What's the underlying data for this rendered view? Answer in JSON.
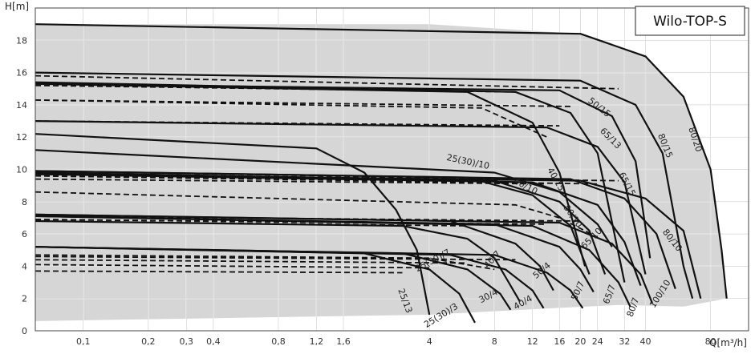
{
  "chart_data": {
    "type": "line",
    "title": "Wilo-TOP-S",
    "xlabel": "Q[m³/h]",
    "ylabel": "H[m]",
    "x_scale": "log",
    "xlim": [
      0.06,
      120
    ],
    "ylim": [
      0,
      20
    ],
    "grid": true,
    "x_ticks": [
      {
        "value": 0.1,
        "label": "0,1"
      },
      {
        "value": 0.2,
        "label": "0,2"
      },
      {
        "value": 0.3,
        "label": "0,3"
      },
      {
        "value": 0.4,
        "label": "0,4"
      },
      {
        "value": 0.8,
        "label": "0,8"
      },
      {
        "value": 1.2,
        "label": "1,2"
      },
      {
        "value": 1.6,
        "label": "1,6"
      },
      {
        "value": 4,
        "label": "4"
      },
      {
        "value": 8,
        "label": "8"
      },
      {
        "value": 12,
        "label": "12"
      },
      {
        "value": 16,
        "label": "16"
      },
      {
        "value": 20,
        "label": "20"
      },
      {
        "value": 24,
        "label": "24"
      },
      {
        "value": 32,
        "label": "32"
      },
      {
        "value": 40,
        "label": "40"
      },
      {
        "value": 80,
        "label": "80"
      }
    ],
    "y_ticks": [
      0,
      2,
      4,
      6,
      8,
      10,
      12,
      14,
      16,
      18
    ],
    "envelope": {
      "top": [
        [
          0.06,
          19.0
        ],
        [
          4,
          19.0
        ],
        [
          20,
          18.4
        ],
        [
          40,
          17.0
        ],
        [
          60,
          14.5
        ],
        [
          80,
          10.0
        ],
        [
          90,
          5.0
        ],
        [
          95,
          2.0
        ]
      ],
      "bottom": [
        [
          95,
          2.0
        ],
        [
          60,
          1.5
        ],
        [
          30,
          1.6
        ],
        [
          15,
          1.4
        ],
        [
          4,
          1.0
        ],
        [
          0.06,
          0.6
        ]
      ]
    },
    "series": [
      {
        "name": "25(30)/10",
        "max": [
          [
            0.06,
            11.2
          ],
          [
            8,
            9.8
          ],
          [
            16,
            8.6
          ],
          [
            24,
            6.6
          ],
          [
            28,
            5.2
          ]
        ],
        "min": [
          [
            0.06,
            8.6
          ],
          [
            10,
            7.8
          ],
          [
            16,
            7.0
          ],
          [
            24,
            5.8
          ]
        ]
      },
      {
        "name": "25/13",
        "max": [
          [
            0.06,
            12.2
          ],
          [
            1.2,
            11.3
          ],
          [
            2,
            9.8
          ],
          [
            2.8,
            7.5
          ],
          [
            3.5,
            5.0
          ],
          [
            4,
            1.0
          ]
        ],
        "min": []
      },
      {
        "name": "25(30)/7",
        "max": [
          [
            0.06,
            6.8
          ],
          [
            3,
            6.5
          ],
          [
            6,
            5.7
          ],
          [
            8,
            4.5
          ],
          [
            10.5,
            1.8
          ]
        ],
        "min": [
          [
            0.06,
            4.7
          ],
          [
            4,
            4.5
          ],
          [
            8,
            3.8
          ]
        ]
      },
      {
        "name": "25(30)/4",
        "max": [
          [
            0.06,
            5.2
          ],
          [
            2,
            4.8
          ],
          [
            4,
            3.8
          ],
          [
            5.5,
            2.3
          ],
          [
            6.5,
            0.5
          ]
        ],
        "min": [
          [
            0.06,
            3.7
          ],
          [
            3,
            3.6
          ]
        ]
      },
      {
        "name": "30/4",
        "max": [
          [
            0.06,
            5.2
          ],
          [
            3,
            4.8
          ],
          [
            6,
            3.8
          ],
          [
            8.5,
            2.3
          ],
          [
            9.5,
            1.3
          ]
        ],
        "min": [
          [
            0.06,
            4.1
          ],
          [
            4,
            3.9
          ]
        ]
      },
      {
        "name": "40/4",
        "max": [
          [
            0.06,
            5.2
          ],
          [
            5,
            4.7
          ],
          [
            9,
            3.8
          ],
          [
            12,
            2.5
          ],
          [
            13.5,
            1.4
          ]
        ],
        "min": [
          [
            0.06,
            4.4
          ],
          [
            6,
            4.2
          ]
        ]
      },
      {
        "name": "40/7",
        "max": [
          [
            0.06,
            7.2
          ],
          [
            5,
            6.8
          ],
          [
            10,
            5.4
          ],
          [
            13,
            4.0
          ],
          [
            15,
            2.5
          ]
        ],
        "min": [
          [
            0.06,
            6.8
          ],
          [
            6,
            6.5
          ]
        ]
      },
      {
        "name": "40/10",
        "max": [
          [
            0.06,
            9.9
          ],
          [
            6,
            9.5
          ],
          [
            12,
            8.4
          ],
          [
            18,
            6.5
          ],
          [
            22,
            3.5
          ]
        ],
        "min": [
          [
            0.06,
            9.6
          ],
          [
            7,
            9.2
          ]
        ]
      },
      {
        "name": "40/15",
        "max": [
          [
            0.06,
            15.3
          ],
          [
            6,
            14.8
          ],
          [
            12,
            12.9
          ],
          [
            16,
            9.8
          ],
          [
            21,
            4.0
          ]
        ],
        "min": [
          [
            0.06,
            14.3
          ],
          [
            7,
            13.8
          ],
          [
            14,
            12.0
          ]
        ]
      },
      {
        "name": "50/4",
        "max": [
          [
            0.06,
            5.2
          ],
          [
            8,
            4.7
          ],
          [
            14,
            3.6
          ],
          [
            18,
            2.5
          ],
          [
            20.5,
            1.4
          ]
        ],
        "min": [
          [
            0.06,
            4.6
          ],
          [
            10,
            4.4
          ]
        ]
      },
      {
        "name": "50/7",
        "max": [
          [
            0.06,
            7.1
          ],
          [
            8,
            6.6
          ],
          [
            16,
            5.2
          ],
          [
            20,
            3.8
          ],
          [
            23,
            2.4
          ]
        ],
        "min": [
          [
            0.06,
            6.9
          ],
          [
            10,
            6.6
          ]
        ]
      },
      {
        "name": "50/10",
        "max": [
          [
            0.06,
            9.8
          ],
          [
            8,
            9.3
          ],
          [
            16,
            8.0
          ],
          [
            22,
            6.2
          ],
          [
            26,
            3.5
          ]
        ],
        "min": [
          [
            0.06,
            9.9
          ],
          [
            10,
            9.4
          ]
        ]
      },
      {
        "name": "50/15",
        "max": [
          [
            0.06,
            15.4
          ],
          [
            10,
            14.8
          ],
          [
            18,
            13.5
          ],
          [
            24,
            11.0
          ],
          [
            32,
            3.0
          ]
        ],
        "min": [
          [
            0.06,
            15.2
          ],
          [
            10,
            14.8
          ]
        ]
      },
      {
        "name": "65/7",
        "max": [
          [
            0.06,
            7.1
          ],
          [
            12,
            6.5
          ],
          [
            22,
            5.0
          ],
          [
            30,
            3.0
          ],
          [
            34,
            1.5
          ]
        ],
        "min": [
          [
            0.06,
            6.9
          ],
          [
            14,
            6.6
          ]
        ]
      },
      {
        "name": "65/10",
        "max": [
          [
            0.06,
            9.7
          ],
          [
            12,
            9.2
          ],
          [
            24,
            7.8
          ],
          [
            32,
            5.5
          ],
          [
            38,
            2.8
          ]
        ],
        "min": [
          [
            0.06,
            9.4
          ],
          [
            14,
            9.1
          ]
        ]
      },
      {
        "name": "65/13",
        "max": [
          [
            0.06,
            13.0
          ],
          [
            14,
            12.6
          ],
          [
            24,
            11.4
          ],
          [
            32,
            9.2
          ],
          [
            40,
            3.5
          ]
        ],
        "min": [
          [
            0.06,
            13.0
          ],
          [
            16,
            12.7
          ]
        ]
      },
      {
        "name": "65/15",
        "max": [
          [
            0.06,
            15.3
          ],
          [
            16,
            14.9
          ],
          [
            28,
            13.3
          ],
          [
            36,
            10.5
          ],
          [
            42,
            4.5
          ]
        ],
        "min": [
          [
            0.06,
            14.3
          ],
          [
            18,
            13.9
          ]
        ]
      },
      {
        "name": "80/7",
        "max": [
          [
            0.06,
            7.2
          ],
          [
            16,
            6.7
          ],
          [
            28,
            5.4
          ],
          [
            38,
            3.5
          ],
          [
            43,
            1.7
          ]
        ],
        "min": [
          [
            0.06,
            7.1
          ],
          [
            20,
            6.8
          ]
        ]
      },
      {
        "name": "80/10",
        "max": [
          [
            0.06,
            9.9
          ],
          [
            18,
            9.4
          ],
          [
            32,
            8.2
          ],
          [
            45,
            6.0
          ],
          [
            55,
            2.6
          ]
        ],
        "min": [
          [
            0.06,
            9.6
          ],
          [
            24,
            9.1
          ]
        ]
      },
      {
        "name": "80/15",
        "max": [
          [
            0.06,
            16.0
          ],
          [
            20,
            15.5
          ],
          [
            36,
            14.0
          ],
          [
            48,
            11.0
          ],
          [
            60,
            4.0
          ],
          [
            66,
            2.0
          ]
        ],
        "min": [
          [
            0.06,
            15.8
          ],
          [
            30,
            15.0
          ]
        ]
      },
      {
        "name": "80/20",
        "max": [
          [
            0.06,
            19.0
          ],
          [
            20,
            18.4
          ],
          [
            40,
            17.0
          ],
          [
            60,
            14.5
          ],
          [
            80,
            10.0
          ],
          [
            90,
            5.0
          ],
          [
            95,
            2.0
          ]
        ],
        "min": []
      },
      {
        "name": "100/10",
        "max": [
          [
            0.06,
            9.7
          ],
          [
            20,
            9.3
          ],
          [
            40,
            8.2
          ],
          [
            60,
            6.2
          ],
          [
            72,
            2.0
          ]
        ],
        "min": [
          [
            0.06,
            9.7
          ],
          [
            30,
            9.3
          ]
        ]
      }
    ],
    "annotations": [
      {
        "text": "25(30)/10",
        "x": 6,
        "y": 10.3,
        "rotate": 12
      },
      {
        "text": "25/13",
        "x": 3.0,
        "y": 1.8,
        "rotate": 70
      },
      {
        "text": "25(30)/7",
        "x": 4.2,
        "y": 4.2,
        "rotate": -28
      },
      {
        "text": "25(30)/3",
        "x": 4.6,
        "y": 0.8,
        "rotate": -32
      },
      {
        "text": "30/4",
        "x": 7.6,
        "y": 2.0,
        "rotate": -28
      },
      {
        "text": "40/4",
        "x": 11,
        "y": 1.6,
        "rotate": -30
      },
      {
        "text": "40/7",
        "x": 8,
        "y": 4.3,
        "rotate": -48
      },
      {
        "text": "40/10",
        "x": 11,
        "y": 8.8,
        "rotate": 28
      },
      {
        "text": "40/15",
        "x": 15,
        "y": 9.3,
        "rotate": 60
      },
      {
        "text": "50/4",
        "x": 13.5,
        "y": 3.6,
        "rotate": -40
      },
      {
        "text": "50/7",
        "x": 20,
        "y": 2.4,
        "rotate": -65
      },
      {
        "text": "50/10",
        "x": 18,
        "y": 7.0,
        "rotate": 55
      },
      {
        "text": "50/15",
        "x": 24,
        "y": 13.7,
        "rotate": 38
      },
      {
        "text": "65/7",
        "x": 28,
        "y": 2.2,
        "rotate": -70
      },
      {
        "text": "65/10",
        "x": 23,
        "y": 5.6,
        "rotate": -45
      },
      {
        "text": "65/13",
        "x": 27,
        "y": 11.8,
        "rotate": 45
      },
      {
        "text": "65/15",
        "x": 32,
        "y": 9.0,
        "rotate": 62
      },
      {
        "text": "80/7",
        "x": 36,
        "y": 1.4,
        "rotate": -70
      },
      {
        "text": "80/10",
        "x": 52,
        "y": 5.5,
        "rotate": 52
      },
      {
        "text": "80/15",
        "x": 48,
        "y": 11.4,
        "rotate": 68
      },
      {
        "text": "80/20",
        "x": 66,
        "y": 11.8,
        "rotate": 72
      },
      {
        "text": "100/10",
        "x": 48,
        "y": 2.2,
        "rotate": -58
      }
    ]
  }
}
